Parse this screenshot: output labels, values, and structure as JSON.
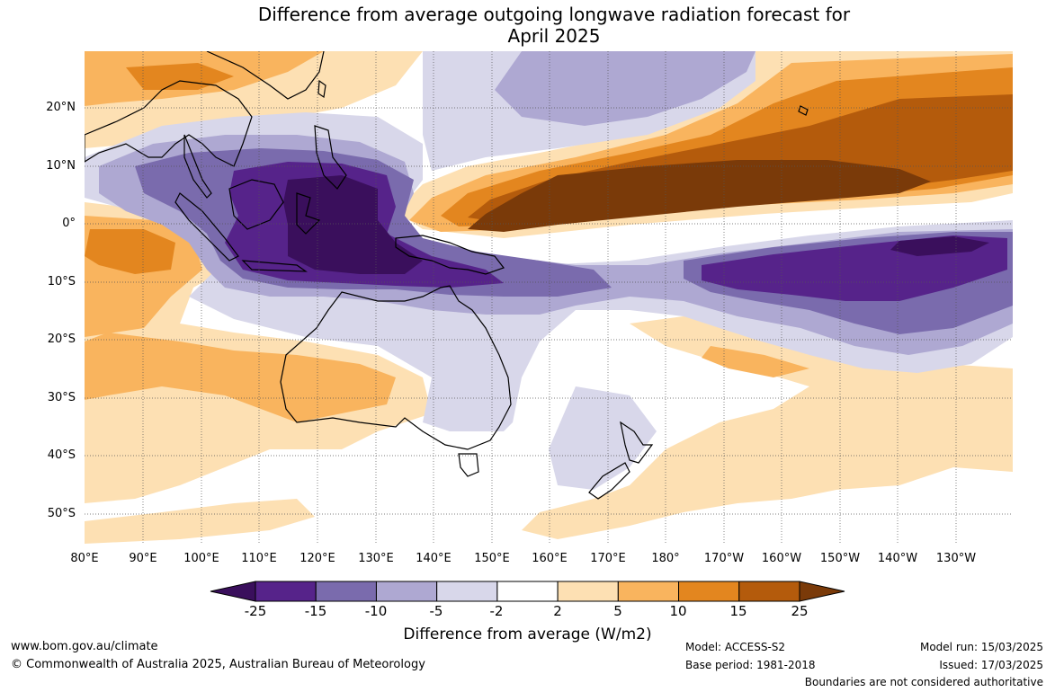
{
  "title_line1": "Difference from average outgoing longwave radiation forecast for",
  "title_line2": "April 2025",
  "lat_labels": [
    "20°N",
    "10°N",
    "0°",
    "10°S",
    "20°S",
    "30°S",
    "40°S",
    "50°S"
  ],
  "lon_labels": [
    "80°E",
    "90°E",
    "100°E",
    "110°E",
    "120°E",
    "130°E",
    "140°E",
    "150°E",
    "160°E",
    "170°E",
    "180°",
    "170°W",
    "160°W",
    "150°W",
    "140°W",
    "130°W"
  ],
  "colorbar": {
    "ticks": [
      "-25",
      "-15",
      "-10",
      "-5",
      "-2",
      "2",
      "5",
      "10",
      "15",
      "25"
    ],
    "colors": [
      "#3a0f5c",
      "#56238a",
      "#7a6bad",
      "#aea8d2",
      "#d8d7ea",
      "#ffffff",
      "#fde0b3",
      "#f9b45e",
      "#e3861f",
      "#b45b0c",
      "#7a3a09"
    ],
    "label": "Difference from average (W/m2)"
  },
  "footer": {
    "website": "www.bom.gov.au/climate",
    "copyright": "© Commonwealth of Australia 2025, Australian Bureau of Meteorology",
    "model": "Model: ACCESS-S2",
    "base_period": "Base period: 1981-2018",
    "model_run": "Model run: 15/03/2025",
    "issued": "Issued: 17/03/2025",
    "disclaimer": "Boundaries are not considered authoritative"
  }
}
